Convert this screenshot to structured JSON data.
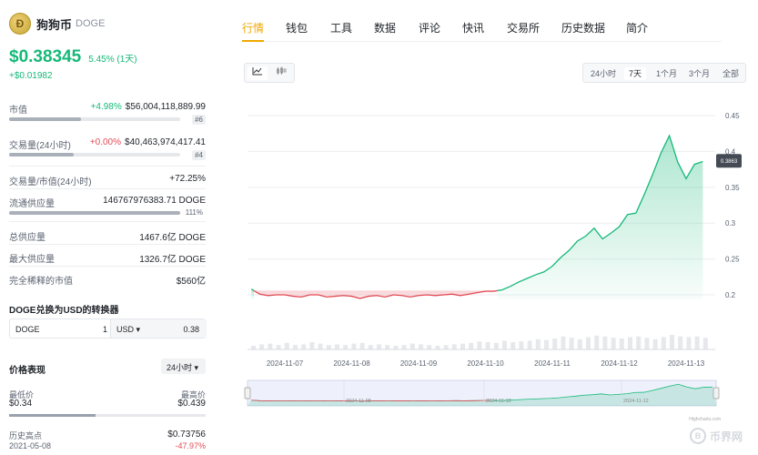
{
  "coin": {
    "name": "狗狗币",
    "symbol": "DOGE",
    "logo_icon": "doge-logo-icon"
  },
  "price": {
    "value": "$0.38345",
    "change_pct": "5.45% (1天)",
    "change_abs": "+$0.01982"
  },
  "stats": {
    "market_cap": {
      "label": "市值",
      "change": "+4.98%",
      "value": "$56,004,118,889.99",
      "rank": "#6",
      "bar_fraction": 0.42
    },
    "volume": {
      "label": "交易量(24小时)",
      "change": "+0.00%",
      "value": "$40,463,974,417.41",
      "rank": "#4",
      "bar_fraction": 0.38
    },
    "vol_mcap": {
      "label": "交易量/市值(24小时)",
      "value": "+72.25%"
    },
    "circulating": {
      "label": "流通供应量",
      "value": "146767976383.71 DOGE",
      "pct": "111%",
      "bar_fraction": 1.0
    },
    "total_supply": {
      "label": "总供应量",
      "value": "1467.6亿 DOGE"
    },
    "max_supply": {
      "label": "最大供应量",
      "value": "1326.7亿 DOGE"
    },
    "fdv": {
      "label": "完全稀释的市值",
      "value": "$560亿"
    }
  },
  "converter": {
    "title": "DOGE兑换为USD的转换器",
    "from_symbol": "DOGE",
    "from_amount": "1",
    "to_symbol": "USD ▾",
    "to_amount": "0.38"
  },
  "performance": {
    "title": "价格表现",
    "period": "24小时 ▾",
    "low_label": "最低价",
    "low_value": "$0.34",
    "high_label": "最高价",
    "high_value": "$0.439",
    "ath_label": "历史高点",
    "ath_value": "$0.73756",
    "ath_date": "2021-05-08",
    "ath_change": "-47.97%"
  },
  "tabs": [
    "行情",
    "钱包",
    "工具",
    "数据",
    "评论",
    "快讯",
    "交易所",
    "历史数据",
    "简介"
  ],
  "chart_controls": {
    "line_icon": "line-chart-icon",
    "candle_icon": "candlestick-icon"
  },
  "ranges": [
    "24小时",
    "7天",
    "1个月",
    "3个月",
    "全部"
  ],
  "navigator_dates": [
    "11-08",
    "11-10",
    "11-12"
  ],
  "credit": "Highcharts.com",
  "watermark": "币界网",
  "colors": {
    "up": "#16b979",
    "down": "#e34b55",
    "accent": "#f0a800"
  },
  "chart_data": {
    "type": "area",
    "x_tick_labels": [
      "2024-11-07",
      "2024-11-08",
      "2024-11-09",
      "2024-11-10",
      "2024-11-11",
      "2024-11-12",
      "2024-11-13"
    ],
    "y_tick_labels": [
      "0.2",
      "0.25",
      "0.3",
      "0.35",
      "0.4",
      "0.45"
    ],
    "ylim": [
      0.2,
      0.45
    ],
    "baseline": 0.2058,
    "current_label": "0.3863",
    "x_start": "2024-11-06T12:00",
    "x_end": "2024-11-13T06:00",
    "series": [
      {
        "x": [
          "11-06 12:00",
          "11-06 15:00",
          "11-06 18:00",
          "11-06 21:00",
          "11-07 00:00",
          "11-07 03:00",
          "11-07 06:00",
          "11-07 09:00",
          "11-07 12:00",
          "11-07 15:00",
          "11-07 18:00",
          "11-07 21:00",
          "11-08 00:00",
          "11-08 03:00",
          "11-08 06:00",
          "11-08 09:00",
          "11-08 12:00",
          "11-08 15:00",
          "11-08 18:00",
          "11-08 21:00",
          "11-09 00:00",
          "11-09 03:00",
          "11-09 06:00",
          "11-09 09:00",
          "11-09 12:00",
          "11-09 15:00",
          "11-09 18:00",
          "11-09 21:00",
          "11-10 00:00",
          "11-10 03:00",
          "11-10 06:00",
          "11-10 09:00",
          "11-10 12:00",
          "11-10 15:00",
          "11-10 18:00",
          "11-10 21:00",
          "11-11 00:00",
          "11-11 03:00",
          "11-11 06:00",
          "11-11 09:00",
          "11-11 12:00",
          "11-11 15:00",
          "11-11 18:00",
          "11-11 21:00",
          "11-12 00:00",
          "11-12 03:00",
          "11-12 06:00",
          "11-12 09:00",
          "11-12 12:00",
          "11-12 15:00",
          "11-12 18:00",
          "11-12 21:00",
          "11-13 00:00",
          "11-13 03:00",
          "11-13 06:00"
        ],
        "values": [
          0.208,
          0.201,
          0.199,
          0.2,
          0.2,
          0.198,
          0.197,
          0.2,
          0.2,
          0.197,
          0.198,
          0.199,
          0.198,
          0.195,
          0.198,
          0.199,
          0.197,
          0.2,
          0.199,
          0.197,
          0.199,
          0.2,
          0.199,
          0.2,
          0.201,
          0.199,
          0.201,
          0.203,
          0.205,
          0.205,
          0.207,
          0.212,
          0.218,
          0.223,
          0.228,
          0.232,
          0.24,
          0.252,
          0.262,
          0.275,
          0.282,
          0.293,
          0.278,
          0.286,
          0.295,
          0.312,
          0.314,
          0.34,
          0.368,
          0.398,
          0.422,
          0.385,
          0.362,
          0.382,
          0.386
        ]
      }
    ],
    "volume": [
      0.25,
      0.35,
      0.4,
      0.3,
      0.45,
      0.3,
      0.35,
      0.5,
      0.4,
      0.3,
      0.35,
      0.3,
      0.4,
      0.45,
      0.3,
      0.35,
      0.3,
      0.25,
      0.3,
      0.4,
      0.35,
      0.3,
      0.25,
      0.3,
      0.35,
      0.4,
      0.45,
      0.55,
      0.5,
      0.45,
      0.6,
      0.5,
      0.55,
      0.6,
      0.7,
      0.65,
      0.75,
      0.9,
      0.8,
      0.7,
      0.85,
      0.95,
      0.9,
      0.8,
      0.75,
      0.85,
      0.9,
      0.8,
      0.7,
      0.85,
      1.0,
      0.9,
      0.85,
      0.9,
      0.8
    ],
    "grid": true,
    "legend": "none"
  }
}
